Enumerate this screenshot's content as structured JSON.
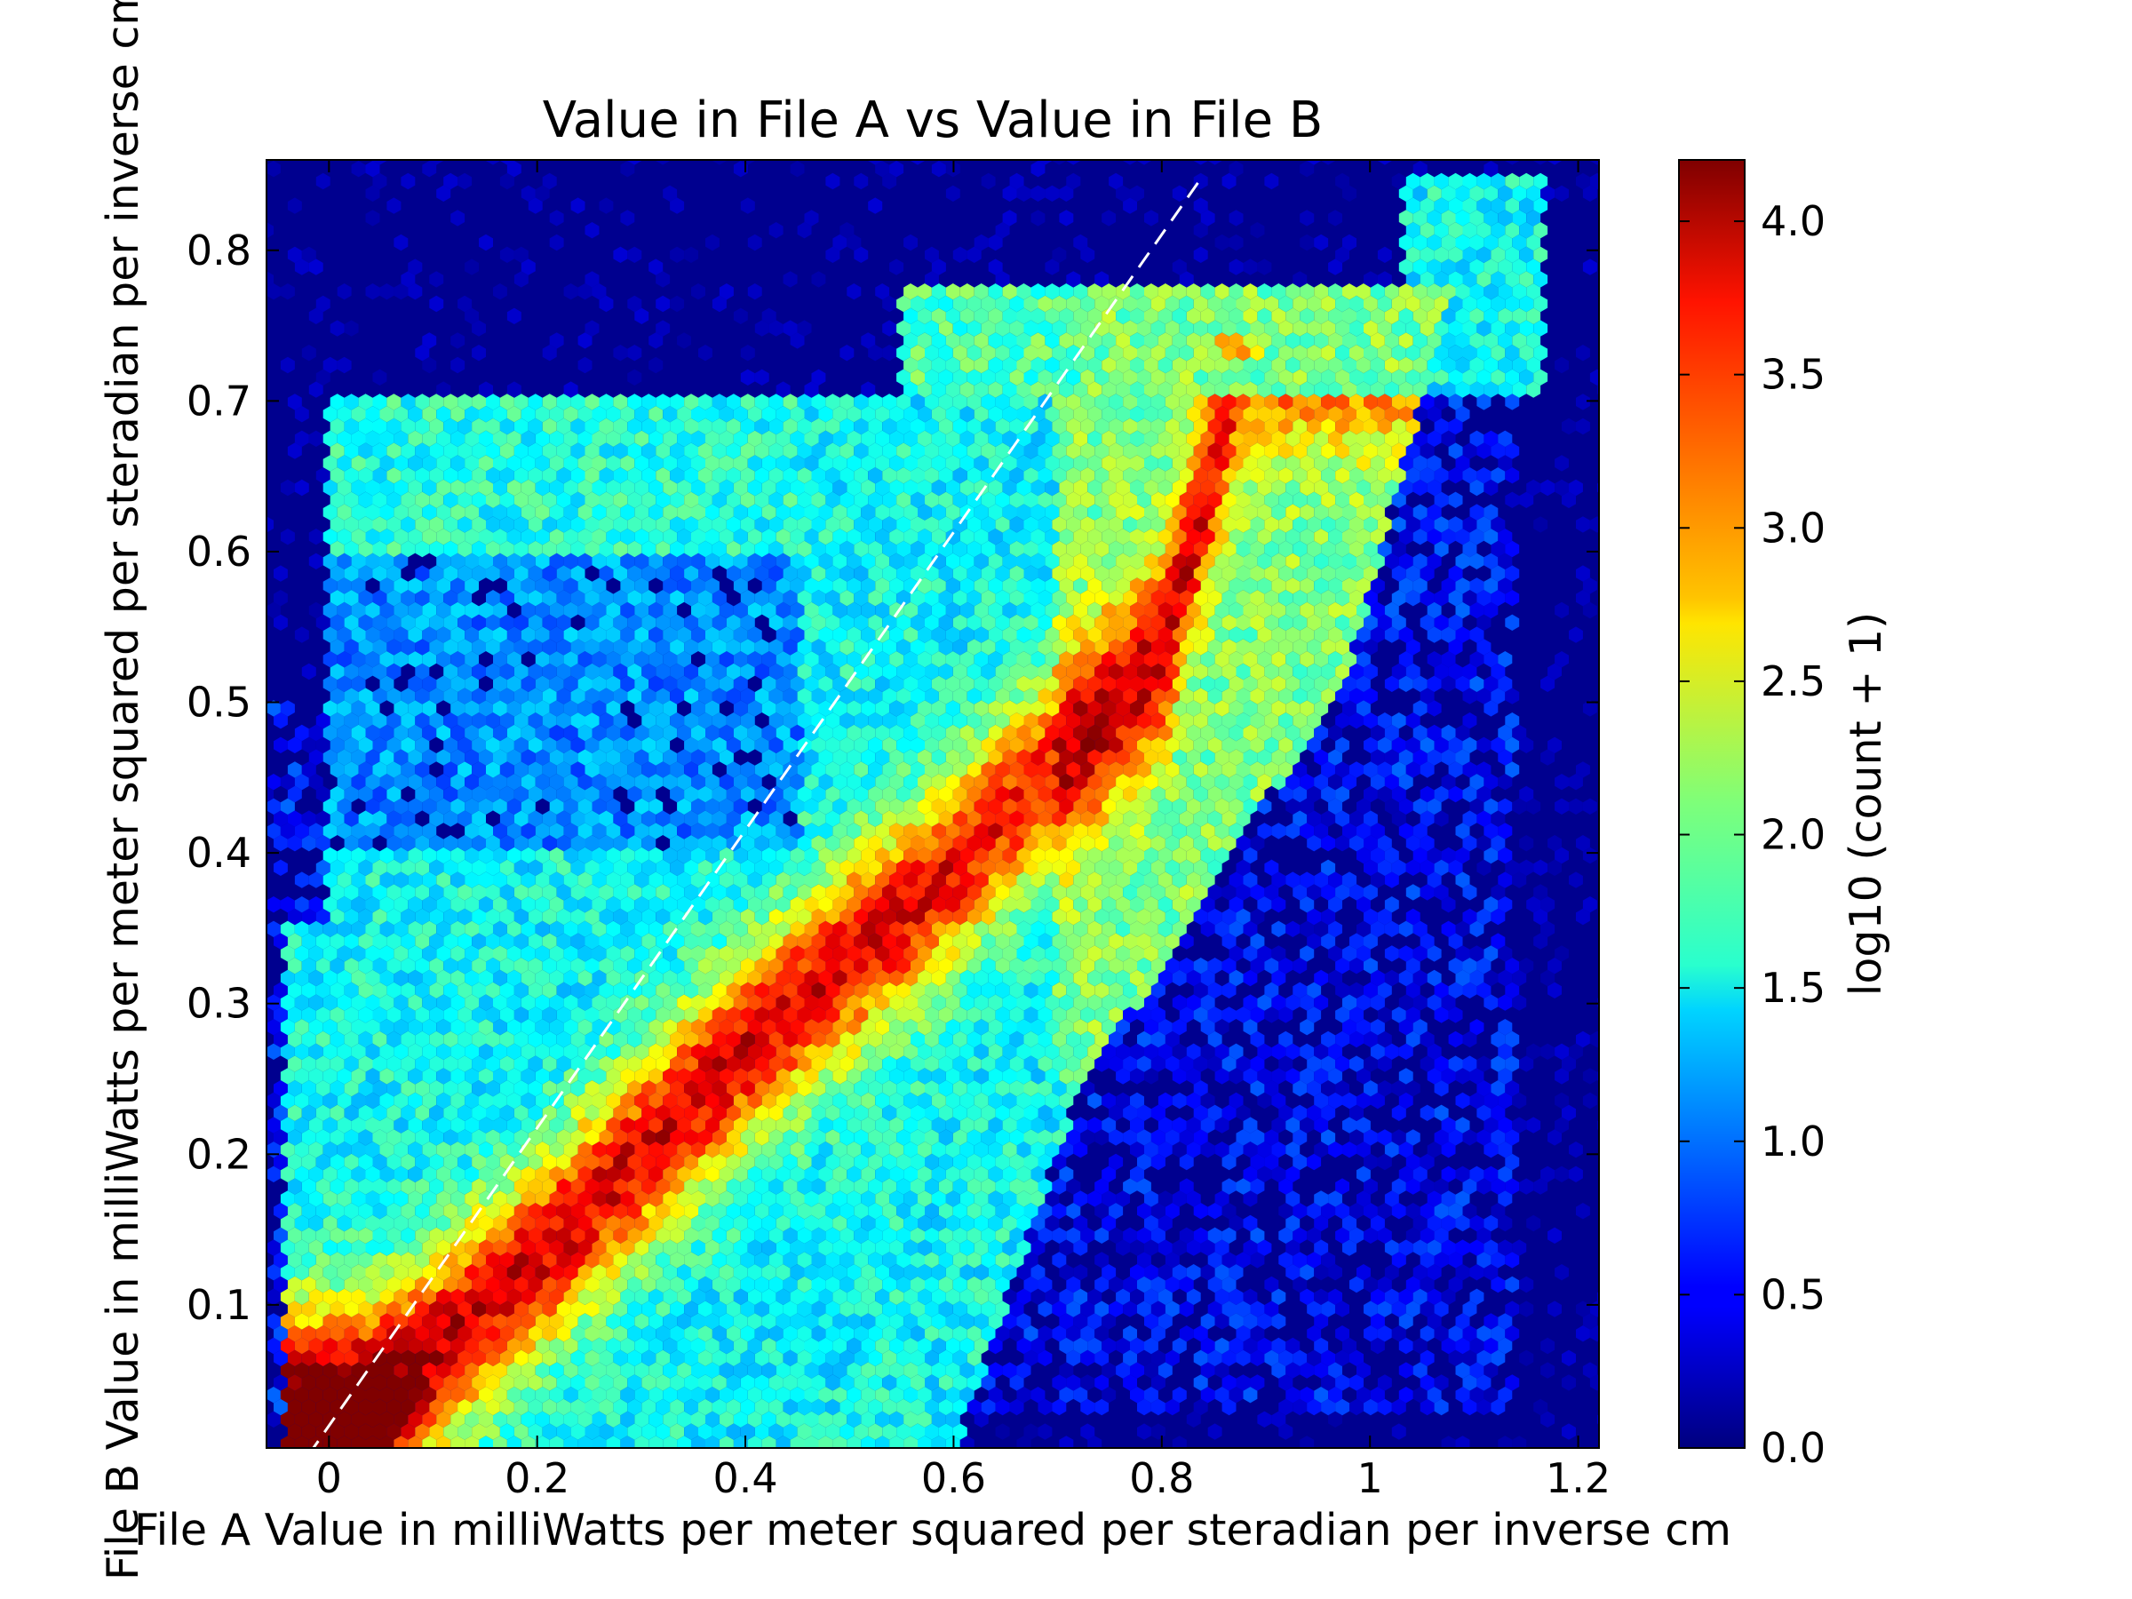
{
  "chart_data": {
    "type": "heatmap",
    "subtype": "hexbin",
    "title": "Value in File A vs Value in File B",
    "xlabel": "File A Value in milliWatts per meter squared per steradian per inverse cm",
    "ylabel": "File B Value in milliWatts per meter squared per steradian per inverse cm",
    "xlim": [
      -0.06,
      1.22
    ],
    "ylim": [
      0.005,
      0.86
    ],
    "xticks": [
      {
        "value": 0,
        "label": "0"
      },
      {
        "value": 0.2,
        "label": "0.2"
      },
      {
        "value": 0.4,
        "label": "0.4"
      },
      {
        "value": 0.6,
        "label": "0.6"
      },
      {
        "value": 0.8,
        "label": "0.8"
      },
      {
        "value": 1.0,
        "label": "1"
      },
      {
        "value": 1.2,
        "label": "1.2"
      }
    ],
    "yticks": [
      {
        "value": 0.1,
        "label": "0.1"
      },
      {
        "value": 0.2,
        "label": "0.2"
      },
      {
        "value": 0.3,
        "label": "0.3"
      },
      {
        "value": 0.4,
        "label": "0.4"
      },
      {
        "value": 0.5,
        "label": "0.5"
      },
      {
        "value": 0.6,
        "label": "0.6"
      },
      {
        "value": 0.7,
        "label": "0.7"
      },
      {
        "value": 0.8,
        "label": "0.8"
      }
    ],
    "colorbar": {
      "label": "log10 (count + 1)",
      "range": [
        0.0,
        4.2
      ],
      "colormap": "jet",
      "ticks": [
        {
          "value": 0.0,
          "label": "0.0"
        },
        {
          "value": 0.5,
          "label": "0.5"
        },
        {
          "value": 1.0,
          "label": "1.0"
        },
        {
          "value": 1.5,
          "label": "1.5"
        },
        {
          "value": 2.0,
          "label": "2.0"
        },
        {
          "value": 2.5,
          "label": "2.5"
        },
        {
          "value": 3.0,
          "label": "3.0"
        },
        {
          "value": 3.5,
          "label": "3.5"
        },
        {
          "value": 4.0,
          "label": "4.0"
        }
      ]
    },
    "background_color": "#00008f",
    "reference_line": {
      "style": "dashed",
      "color": "#ffffff",
      "x": [
        -0.02,
        0.84
      ],
      "y": [
        0.0,
        0.85
      ]
    },
    "density_features": [
      {
        "region": "main ridge",
        "x": [
          0.02,
          0.1,
          0.2,
          0.3,
          0.4,
          0.5,
          0.57,
          0.7,
          0.8,
          0.88
        ],
        "y": [
          0.02,
          0.07,
          0.13,
          0.2,
          0.27,
          0.33,
          0.37,
          0.46,
          0.53,
          0.74
        ],
        "peak_log10": 4.2
      },
      {
        "region": "bright spot",
        "x": 0.87,
        "y": 0.735,
        "log10": 3.2
      },
      {
        "region": "upper plateau",
        "x_range": [
          0.0,
          0.72
        ],
        "y_range": [
          0.6,
          0.7
        ],
        "log10": 1.8
      },
      {
        "region": "upper-right cluster",
        "x_range": [
          1.04,
          1.18
        ],
        "y_range": [
          0.72,
          0.85
        ],
        "log10": 1.8
      },
      {
        "region": "lower-right sparse",
        "x_range": [
          0.6,
          1.16
        ],
        "y_range": [
          0.03,
          0.5
        ],
        "log10": 0.6
      }
    ]
  }
}
